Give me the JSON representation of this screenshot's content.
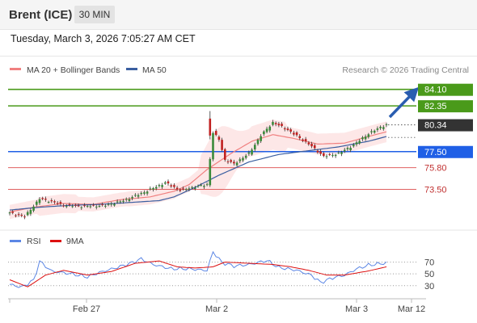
{
  "header": {
    "title": "Brent (ICE)",
    "timeframe": "30 MIN"
  },
  "datetime": "Tuesday, March 3, 2026 7:05:27 AM CET",
  "legend": {
    "ma20_bollinger": "MA 20 + Bollinger Bands",
    "ma50": "MA 50",
    "copyright": "Research © 2026 Trading Central"
  },
  "rsi_legend": {
    "rsi": "RSI",
    "ma9": "9MA"
  },
  "colors": {
    "ma20": "#f08080",
    "ma50": "#3a5ea0",
    "bands": "#fde3e3",
    "green": "#4a9a1a",
    "blue": "#1f5fe6",
    "red": "#e06060",
    "candle_up": "#3a8a3a",
    "candle_down": "#c02020",
    "rsi": "#5b86e5",
    "rsi_ma": "#dd1010",
    "arrow": "#2a5db0"
  },
  "chart_data": [
    {
      "type": "candlestick",
      "title": "Brent (ICE)",
      "x_ticks": [
        "Feb 27",
        "Mar 2",
        "Mar 3",
        "Mar 12"
      ],
      "ylim": [
        69.6,
        85.7
      ],
      "last_price": {
        "value": 80.34,
        "label": "80.34"
      },
      "levels": [
        {
          "value": 84.1,
          "label": "84.10",
          "kind": "resistance",
          "color": "#4a9a1a"
        },
        {
          "value": 82.35,
          "label": "82.35",
          "kind": "resistance",
          "color": "#4a9a1a"
        },
        {
          "value": 77.5,
          "label": "77.50",
          "kind": "pivot",
          "color": "#1f5fe6"
        },
        {
          "value": 75.8,
          "label": "75.80",
          "kind": "support",
          "color": "#e06060"
        },
        {
          "value": 73.5,
          "label": "73.50",
          "kind": "support",
          "color": "#e06060"
        }
      ],
      "series": [
        {
          "name": "MA 20 + Bollinger Bands",
          "anchors": [
            [
              0,
              71.1
            ],
            [
              8,
              71.6
            ],
            [
              18,
              72.0
            ],
            [
              28,
              71.9
            ],
            [
              37,
              72.4
            ],
            [
              47,
              72.7
            ],
            [
              55,
              73.3
            ],
            [
              60,
              74.0
            ],
            [
              66,
              75.6
            ],
            [
              74,
              77.3
            ],
            [
              81,
              78.6
            ],
            [
              88,
              79.3
            ],
            [
              95,
              78.9
            ],
            [
              103,
              78.3
            ],
            [
              112,
              78.4
            ],
            [
              120,
              79.1
            ],
            [
              126,
              79.6
            ]
          ]
        },
        {
          "name": "MA 50",
          "anchors": [
            [
              0,
              71.3
            ],
            [
              10,
              71.6
            ],
            [
              20,
              71.8
            ],
            [
              30,
              71.9
            ],
            [
              40,
              72.1
            ],
            [
              50,
              72.3
            ],
            [
              55,
              72.7
            ],
            [
              62,
              73.7
            ],
            [
              70,
              75.0
            ],
            [
              80,
              76.4
            ],
            [
              90,
              77.2
            ],
            [
              100,
              77.6
            ],
            [
              110,
              78.0
            ],
            [
              120,
              78.6
            ],
            [
              126,
              79.1
            ]
          ]
        },
        {
          "name": "Close",
          "anchors": [
            [
              0,
              71.0
            ],
            [
              5,
              70.6
            ],
            [
              10,
              72.5
            ],
            [
              14,
              72.2
            ],
            [
              18,
              71.8
            ],
            [
              25,
              71.7
            ],
            [
              32,
              71.8
            ],
            [
              38,
              72.3
            ],
            [
              45,
              73.2
            ],
            [
              52,
              74.2
            ],
            [
              57,
              73.4
            ],
            [
              61,
              73.7
            ],
            [
              66,
              74.0
            ],
            [
              68,
              79.5
            ],
            [
              70,
              78.8
            ],
            [
              72,
              76.6
            ],
            [
              75,
              76.2
            ],
            [
              80,
              77.3
            ],
            [
              84,
              79.2
            ],
            [
              88,
              80.6
            ],
            [
              93,
              79.8
            ],
            [
              100,
              78.3
            ],
            [
              105,
              77.0
            ],
            [
              110,
              77.3
            ],
            [
              115,
              78.2
            ],
            [
              120,
              79.4
            ],
            [
              124,
              80.1
            ],
            [
              126,
              80.34
            ]
          ]
        }
      ]
    },
    {
      "type": "line",
      "title": "RSI",
      "yticks": [
        70,
        50,
        30
      ],
      "ylim": [
        5,
        90
      ],
      "series": [
        {
          "name": "RSI",
          "anchors": [
            [
              0,
              32
            ],
            [
              4,
              28
            ],
            [
              8,
              40
            ],
            [
              10,
              72
            ],
            [
              14,
              55
            ],
            [
              20,
              50
            ],
            [
              26,
              44
            ],
            [
              30,
              52
            ],
            [
              35,
              60
            ],
            [
              40,
              68
            ],
            [
              44,
              76
            ],
            [
              48,
              66
            ],
            [
              54,
              58
            ],
            [
              60,
              58
            ],
            [
              66,
              56
            ],
            [
              68,
              88
            ],
            [
              71,
              70
            ],
            [
              75,
              64
            ],
            [
              80,
              66
            ],
            [
              86,
              72
            ],
            [
              90,
              60
            ],
            [
              96,
              56
            ],
            [
              101,
              48
            ],
            [
              104,
              36
            ],
            [
              108,
              44
            ],
            [
              112,
              48
            ],
            [
              116,
              58
            ],
            [
              120,
              64
            ],
            [
              126,
              68
            ]
          ]
        },
        {
          "name": "9MA",
          "anchors": [
            [
              0,
              40
            ],
            [
              6,
              28
            ],
            [
              12,
              48
            ],
            [
              18,
              56
            ],
            [
              26,
              48
            ],
            [
              34,
              54
            ],
            [
              42,
              68
            ],
            [
              50,
              72
            ],
            [
              56,
              62
            ],
            [
              62,
              60
            ],
            [
              68,
              62
            ],
            [
              72,
              70
            ],
            [
              80,
              68
            ],
            [
              88,
              66
            ],
            [
              94,
              62
            ],
            [
              100,
              56
            ],
            [
              106,
              48
            ],
            [
              112,
              48
            ],
            [
              120,
              55
            ],
            [
              126,
              62
            ]
          ]
        }
      ]
    }
  ]
}
